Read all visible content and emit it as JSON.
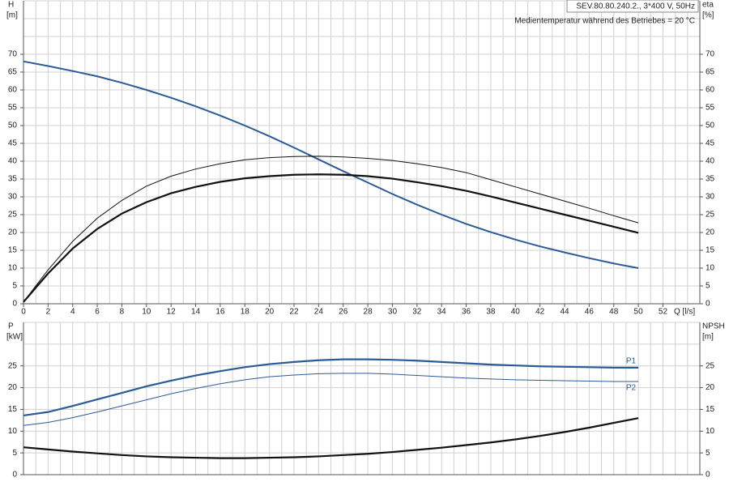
{
  "chart_data": [
    {
      "type": "line",
      "ylabel": "H",
      "yunit": "[m]",
      "y2label": "eta",
      "y2unit": "[%]",
      "xlabel": "Q [l/s]",
      "annotations": [
        "SEV.80.80.240.2., 3*400 V, 50Hz",
        "Medientemperatur während des Betriebes = 20 °C"
      ],
      "xlim": [
        0,
        55
      ],
      "xticks": [
        0,
        2,
        4,
        6,
        8,
        10,
        12,
        14,
        16,
        18,
        20,
        22,
        24,
        26,
        28,
        30,
        32,
        34,
        36,
        38,
        40,
        42,
        44,
        46,
        48,
        50,
        52
      ],
      "ylim": [
        0,
        85
      ],
      "yticks": [
        0,
        5,
        10,
        15,
        20,
        25,
        30,
        35,
        40,
        45,
        50,
        55,
        60,
        65,
        70
      ],
      "y2lim": [
        0,
        85
      ],
      "y2ticks": [
        0,
        5,
        10,
        15,
        20,
        25,
        30,
        35,
        40,
        45,
        50,
        55,
        60,
        65,
        70
      ],
      "grid": true,
      "minor_xgrid": 1,
      "minor_ygrid": 5,
      "x": [
        0,
        2,
        4,
        6,
        8,
        10,
        12,
        14,
        16,
        18,
        20,
        22,
        24,
        26,
        28,
        30,
        32,
        34,
        36,
        38,
        40,
        42,
        44,
        46,
        48,
        50
      ],
      "series": [
        {
          "color": "#2b5b97",
          "width": 2,
          "values": [
            68,
            66.7,
            65.3,
            63.8,
            62.0,
            60.0,
            57.8,
            55.4,
            52.8,
            50.0,
            47.0,
            43.8,
            40.5,
            37.2,
            34.0,
            30.8,
            27.8,
            25.0,
            22.4,
            20.1,
            18.0,
            16.1,
            14.4,
            12.8,
            11.3,
            10.0
          ]
        },
        {
          "color": "#111111",
          "width": 1,
          "axis": "y2",
          "values": [
            0.5,
            9.5,
            17.5,
            24,
            29,
            33,
            35.8,
            37.8,
            39.3,
            40.4,
            41.0,
            41.3,
            41.4,
            41.2,
            40.8,
            40.2,
            39.3,
            38.2,
            36.8,
            34.8,
            32.8,
            30.8,
            28.8,
            26.8,
            24.7,
            22.7
          ]
        },
        {
          "color": "#111111",
          "width": 2.2,
          "axis": "y2",
          "values": [
            0.5,
            8.5,
            15.5,
            21,
            25.3,
            28.5,
            31,
            32.8,
            34.2,
            35.2,
            35.8,
            36.2,
            36.3,
            36.2,
            35.8,
            35.1,
            34.1,
            33.0,
            31.7,
            30.1,
            28.4,
            26.7,
            25.0,
            23.3,
            21.6,
            19.9
          ]
        }
      ]
    },
    {
      "type": "line",
      "ylabel": "P",
      "yunit": "[kW]",
      "y2label": "NPSH",
      "y2unit": "[m]",
      "xlim": [
        0,
        55
      ],
      "ylim": [
        0,
        35
      ],
      "yticks": [
        0,
        5,
        10,
        15,
        20,
        25
      ],
      "y2lim": [
        0,
        35
      ],
      "y2ticks": [
        0,
        5,
        10,
        15,
        20,
        25
      ],
      "grid": true,
      "minor_xgrid": 1,
      "minor_ygrid": 5,
      "x": [
        0,
        2,
        4,
        6,
        8,
        10,
        12,
        14,
        16,
        18,
        20,
        22,
        24,
        26,
        28,
        30,
        32,
        34,
        36,
        38,
        40,
        42,
        44,
        46,
        48,
        50
      ],
      "series": [
        {
          "name": "P1",
          "color": "#2b5b97",
          "width": 2.2,
          "values": [
            13.6,
            14.4,
            15.8,
            17.3,
            18.8,
            20.3,
            21.6,
            22.8,
            23.8,
            24.7,
            25.4,
            25.9,
            26.3,
            26.5,
            26.5,
            26.4,
            26.2,
            25.9,
            25.6,
            25.3,
            25.1,
            24.9,
            24.8,
            24.7,
            24.6,
            24.6
          ]
        },
        {
          "name": "P2",
          "color": "#2b5b97",
          "width": 1,
          "values": [
            11.3,
            12.0,
            13.1,
            14.4,
            15.8,
            17.2,
            18.6,
            19.8,
            20.9,
            21.8,
            22.5,
            22.9,
            23.2,
            23.3,
            23.3,
            23.1,
            22.8,
            22.5,
            22.2,
            22.0,
            21.8,
            21.7,
            21.6,
            21.5,
            21.4,
            21.4
          ]
        },
        {
          "color": "#111111",
          "width": 2.2,
          "axis": "y2",
          "values": [
            6.3,
            5.8,
            5.3,
            4.9,
            4.5,
            4.2,
            4.0,
            3.9,
            3.8,
            3.8,
            3.9,
            4.0,
            4.2,
            4.5,
            4.8,
            5.2,
            5.7,
            6.2,
            6.8,
            7.4,
            8.1,
            8.9,
            9.8,
            10.8,
            11.9,
            13.0
          ]
        }
      ]
    }
  ]
}
